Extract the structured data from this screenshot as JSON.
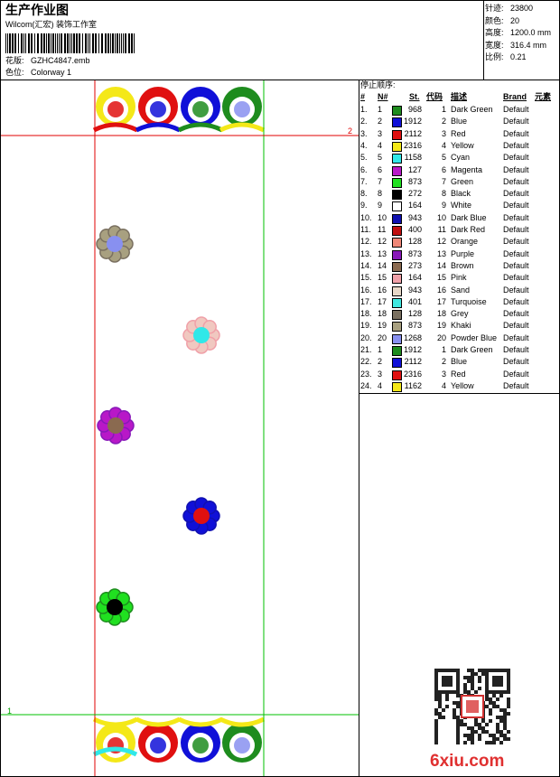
{
  "header": {
    "title": "生产作业图",
    "studio": "Wilcom(汇宏) 装饰工作室",
    "design_label": "花版:",
    "design": "GZHC4847.emb",
    "colorway_label": "色位:",
    "colorway": "Colorway 1"
  },
  "info": [
    {
      "label": "针迹:",
      "value": "23800"
    },
    {
      "label": "颜色:",
      "value": "20"
    },
    {
      "label": "高度:",
      "value": "1200.0 mm"
    },
    {
      "label": "宽度:",
      "value": "316.4 mm"
    },
    {
      "label": "比例:",
      "value": "0.21"
    }
  ],
  "markers": {
    "top": "2",
    "bottom": "1"
  },
  "stop_sequence": {
    "title": "停止顺序:",
    "columns": [
      "#",
      "N#",
      "St.",
      "代码",
      "描述",
      "Brand",
      "元素"
    ],
    "rows": [
      {
        "index": "1.",
        "needle": 1,
        "color": "#1e8c1e",
        "stitches": 968,
        "code": 1,
        "description": "Dark Green",
        "brand": "Default"
      },
      {
        "index": "2.",
        "needle": 2,
        "color": "#1010d8",
        "stitches": 1912,
        "code": 2,
        "description": "Blue",
        "brand": "Default"
      },
      {
        "index": "3.",
        "needle": 3,
        "color": "#e01010",
        "stitches": 2112,
        "code": 3,
        "description": "Red",
        "brand": "Default"
      },
      {
        "index": "4.",
        "needle": 4,
        "color": "#f4e818",
        "stitches": 2316,
        "code": 4,
        "description": "Yellow",
        "brand": "Default"
      },
      {
        "index": "5.",
        "needle": 5,
        "color": "#30e8e8",
        "stitches": 1158,
        "code": 5,
        "description": "Cyan",
        "brand": "Default"
      },
      {
        "index": "6.",
        "needle": 6,
        "color": "#b818c8",
        "stitches": 127,
        "code": 6,
        "description": "Magenta",
        "brand": "Default"
      },
      {
        "index": "7.",
        "needle": 7,
        "color": "#20e020",
        "stitches": 873,
        "code": 7,
        "description": "Green",
        "brand": "Default"
      },
      {
        "index": "8.",
        "needle": 8,
        "color": "#000000",
        "stitches": 272,
        "code": 8,
        "description": "Black",
        "brand": "Default"
      },
      {
        "index": "9.",
        "needle": 9,
        "color": "#ffffff",
        "stitches": 164,
        "code": 9,
        "description": "White",
        "brand": "Default"
      },
      {
        "index": "10.",
        "needle": 10,
        "color": "#1010b0",
        "stitches": 943,
        "code": 10,
        "description": "Dark Blue",
        "brand": "Default"
      },
      {
        "index": "11.",
        "needle": 11,
        "color": "#c01010",
        "stitches": 400,
        "code": 11,
        "description": "Dark Red",
        "brand": "Default"
      },
      {
        "index": "12.",
        "needle": 12,
        "color": "#f08878",
        "stitches": 128,
        "code": 12,
        "description": "Orange",
        "brand": "Default"
      },
      {
        "index": "13.",
        "needle": 13,
        "color": "#8818b8",
        "stitches": 873,
        "code": 13,
        "description": "Purple",
        "brand": "Default"
      },
      {
        "index": "14.",
        "needle": 14,
        "color": "#8a6a50",
        "stitches": 273,
        "code": 14,
        "description": "Brown",
        "brand": "Default"
      },
      {
        "index": "15.",
        "needle": 15,
        "color": "#f0a0a8",
        "stitches": 164,
        "code": 15,
        "description": "Pink",
        "brand": "Default"
      },
      {
        "index": "16.",
        "needle": 16,
        "color": "#e8d8c8",
        "stitches": 943,
        "code": 16,
        "description": "Sand",
        "brand": "Default"
      },
      {
        "index": "17.",
        "needle": 17,
        "color": "#40e8e0",
        "stitches": 401,
        "code": 17,
        "description": "Turquoise",
        "brand": "Default"
      },
      {
        "index": "18.",
        "needle": 18,
        "color": "#7a7060",
        "stitches": 128,
        "code": 18,
        "description": "Grey",
        "brand": "Default"
      },
      {
        "index": "19.",
        "needle": 19,
        "color": "#a8a080",
        "stitches": 873,
        "code": 19,
        "description": "Khaki",
        "brand": "Default"
      },
      {
        "index": "20.",
        "needle": 20,
        "color": "#8890f0",
        "stitches": 1268,
        "code": 20,
        "description": "Powder Blue",
        "brand": "Default"
      },
      {
        "index": "21.",
        "needle": 1,
        "color": "#1e8c1e",
        "stitches": 1912,
        "code": 1,
        "description": "Dark Green",
        "brand": "Default"
      },
      {
        "index": "22.",
        "needle": 2,
        "color": "#1010d8",
        "stitches": 2112,
        "code": 2,
        "description": "Blue",
        "brand": "Default"
      },
      {
        "index": "23.",
        "needle": 3,
        "color": "#e01010",
        "stitches": 2316,
        "code": 3,
        "description": "Red",
        "brand": "Default"
      },
      {
        "index": "24.",
        "needle": 4,
        "color": "#f4e818",
        "stitches": 1162,
        "code": 4,
        "description": "Yellow",
        "brand": "Default"
      }
    ]
  },
  "watermark": "6xiu.com"
}
